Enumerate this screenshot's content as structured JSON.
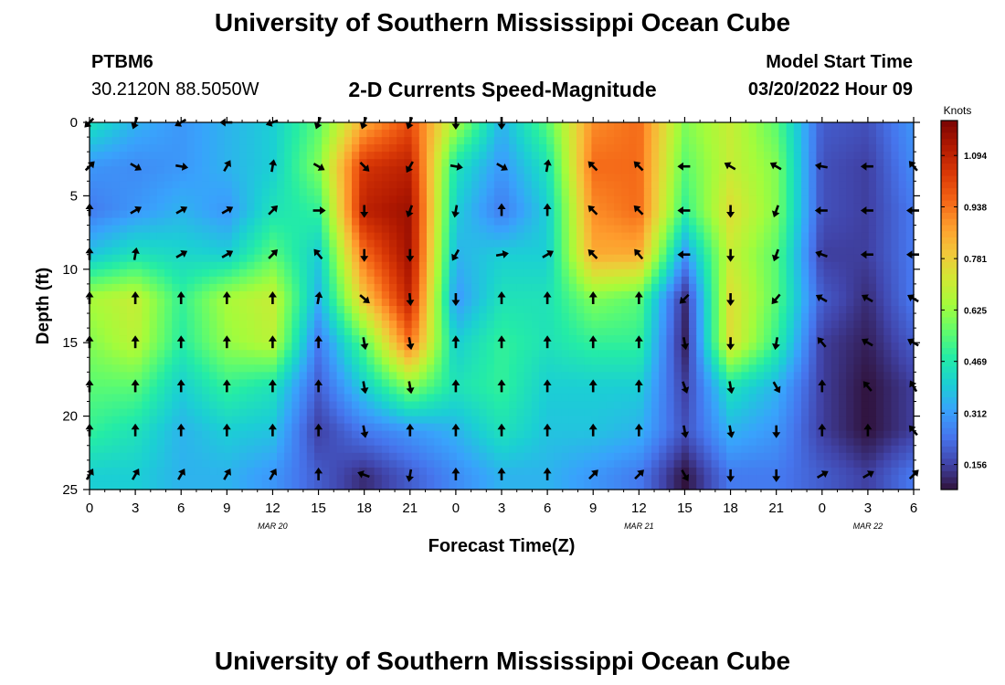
{
  "page_title": "University of Southern Mississippi Ocean Cube",
  "footer_title": "University of Southern Mississippi Ocean Cube",
  "station": {
    "id": "PTBM6",
    "coords": "30.2120N  88.5050W"
  },
  "subtitle": "2-D Currents Speed-Magnitude",
  "model_start": {
    "label": "Model Start Time",
    "value": "03/20/2022 Hour 09"
  },
  "colors": {
    "palette": [
      "#30123b",
      "#4145ab",
      "#4675ed",
      "#39a2fc",
      "#1bcfd4",
      "#24eca6",
      "#61fc6c",
      "#a4fc3b",
      "#d1e834",
      "#f3c63a",
      "#fe9b2d",
      "#f36315",
      "#d93806",
      "#b11901",
      "#7a0403"
    ]
  },
  "chart_data": {
    "type": "heatmap",
    "title": "2-D Currents Speed-Magnitude",
    "xlabel": "Forecast Time(Z)",
    "ylabel": "Depth (ft)",
    "colorbar_label": "Knots",
    "x_hours": [
      0,
      3,
      6,
      9,
      12,
      15,
      18,
      21,
      24,
      27,
      30,
      33,
      36,
      39,
      42,
      45,
      48,
      51,
      54
    ],
    "x_tick_labels": [
      "0",
      "3",
      "6",
      "9",
      "12",
      "15",
      "18",
      "21",
      "0",
      "3",
      "6",
      "9",
      "12",
      "15",
      "18",
      "21",
      "0",
      "3",
      "6"
    ],
    "date_labels": [
      {
        "label": "MAR 20",
        "hour": 12
      },
      {
        "label": "MAR 21",
        "hour": 36
      },
      {
        "label": "MAR 22",
        "hour": 51
      }
    ],
    "depths": [
      0,
      3,
      6,
      9,
      12,
      15,
      18,
      21,
      24
    ],
    "y_ticks": [
      0,
      5,
      10,
      15,
      20,
      25
    ],
    "ylim": [
      0,
      25
    ],
    "xlim": [
      0,
      54
    ],
    "colorbar_ticks": [
      "0.156",
      "0.312",
      "0.469",
      "0.625",
      "0.781",
      "0.938",
      "1.094"
    ],
    "colorbar_range": [
      0.08,
      1.2
    ],
    "speed_grid_knots": [
      [
        0.45,
        0.35,
        0.3,
        0.35,
        0.4,
        0.55,
        0.85,
        1.0,
        0.65,
        0.35,
        0.55,
        0.9,
        0.95,
        0.6,
        0.7,
        0.55,
        0.2,
        0.18,
        0.3
      ],
      [
        0.3,
        0.28,
        0.3,
        0.35,
        0.4,
        0.6,
        1.05,
        1.1,
        0.45,
        0.3,
        0.45,
        0.95,
        0.95,
        0.55,
        0.7,
        0.6,
        0.18,
        0.15,
        0.28
      ],
      [
        0.25,
        0.3,
        0.35,
        0.3,
        0.45,
        0.5,
        1.1,
        1.15,
        0.4,
        0.25,
        0.4,
        0.9,
        0.95,
        0.5,
        0.75,
        0.6,
        0.18,
        0.15,
        0.25
      ],
      [
        0.38,
        0.45,
        0.42,
        0.4,
        0.55,
        0.4,
        0.95,
        1.15,
        0.35,
        0.4,
        0.4,
        0.85,
        0.85,
        0.3,
        0.7,
        0.55,
        0.15,
        0.15,
        0.25
      ],
      [
        0.65,
        0.7,
        0.5,
        0.65,
        0.7,
        0.35,
        0.8,
        1.1,
        0.3,
        0.45,
        0.45,
        0.6,
        0.55,
        0.12,
        0.75,
        0.55,
        0.2,
        0.12,
        0.25
      ],
      [
        0.6,
        0.68,
        0.48,
        0.62,
        0.68,
        0.25,
        0.55,
        0.95,
        0.4,
        0.5,
        0.45,
        0.5,
        0.5,
        0.1,
        0.75,
        0.5,
        0.15,
        0.1,
        0.2
      ],
      [
        0.55,
        0.55,
        0.4,
        0.5,
        0.45,
        0.2,
        0.4,
        0.6,
        0.45,
        0.5,
        0.4,
        0.4,
        0.4,
        0.15,
        0.45,
        0.35,
        0.15,
        0.08,
        0.15
      ],
      [
        0.5,
        0.45,
        0.35,
        0.4,
        0.38,
        0.15,
        0.25,
        0.3,
        0.35,
        0.45,
        0.38,
        0.38,
        0.35,
        0.18,
        0.35,
        0.3,
        0.15,
        0.08,
        0.15
      ],
      [
        0.4,
        0.4,
        0.35,
        0.35,
        0.3,
        0.2,
        0.12,
        0.2,
        0.28,
        0.35,
        0.35,
        0.3,
        0.25,
        0.08,
        0.25,
        0.25,
        0.2,
        0.15,
        0.25
      ]
    ],
    "arrow_dir_deg": [
      [
        225,
        200,
        240,
        270,
        250,
        200,
        200,
        200,
        180,
        180,
        null,
        null,
        null,
        null,
        null,
        null,
        null,
        null,
        null
      ],
      [
        45,
        120,
        100,
        30,
        10,
        120,
        135,
        210,
        100,
        120,
        10,
        315,
        315,
        270,
        300,
        300,
        280,
        270,
        320
      ],
      [
        0,
        60,
        60,
        60,
        45,
        90,
        180,
        200,
        190,
        0,
        0,
        315,
        315,
        270,
        180,
        200,
        270,
        270,
        270
      ],
      [
        0,
        10,
        60,
        60,
        45,
        320,
        180,
        180,
        210,
        80,
        60,
        315,
        320,
        270,
        180,
        200,
        290,
        270,
        270
      ],
      [
        0,
        0,
        0,
        0,
        0,
        10,
        130,
        175,
        180,
        0,
        0,
        0,
        0,
        225,
        180,
        220,
        300,
        300,
        300
      ],
      [
        0,
        0,
        0,
        0,
        0,
        0,
        170,
        170,
        0,
        0,
        0,
        0,
        0,
        170,
        180,
        190,
        320,
        300,
        300
      ],
      [
        0,
        0,
        0,
        0,
        0,
        0,
        170,
        170,
        0,
        0,
        0,
        0,
        0,
        160,
        170,
        150,
        0,
        320,
        330
      ],
      [
        0,
        0,
        0,
        0,
        0,
        0,
        170,
        0,
        0,
        0,
        0,
        0,
        0,
        170,
        170,
        180,
        0,
        0,
        320
      ],
      [
        30,
        30,
        30,
        30,
        30,
        0,
        290,
        190,
        0,
        0,
        0,
        45,
        45,
        150,
        180,
        180,
        60,
        60,
        45
      ]
    ]
  }
}
